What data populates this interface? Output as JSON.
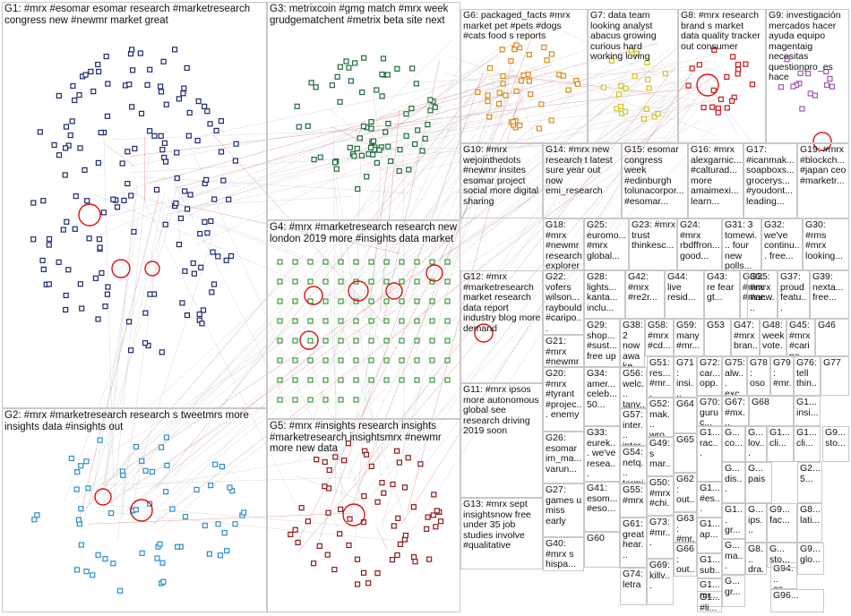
{
  "graph": {
    "groups": [
      {
        "id": "G1",
        "label": "G1: #mrx #esomar esomar research #marketresearch congress new #newmr market great",
        "color": "#1e2a6e"
      },
      {
        "id": "G2",
        "label": "G2: #mrx #marketresearch research s tweetmrs more insights data #insights out",
        "color": "#2b8fc7"
      },
      {
        "id": "G3",
        "label": "G3: metrixcoin #gmg match #mrx week grudgematchent #metrix beta site next",
        "color": "#1f6b3a"
      },
      {
        "id": "G4",
        "label": "G4: #mrx #marketresearch research new london 2019 more #insights data market",
        "color": "#3a9a3a"
      },
      {
        "id": "G5",
        "label": "G5: #mrx #insights research insights #marketresearch insightsmrx #newmr more new data",
        "color": "#8b1a1a"
      },
      {
        "id": "G6",
        "label": "G6: packaged_facts #mrx market pet #pets #dogs #cats food s reports",
        "color": "#d98a1a"
      },
      {
        "id": "G7",
        "label": "G7: data team looking analyst abacus growing curious hard working loving",
        "color": "#d4c21a"
      },
      {
        "id": "G8",
        "label": "G8: #mrx research brand s market data quality tracker out consumer",
        "color": "#c51b1b"
      },
      {
        "id": "G9",
        "label": "G9: investigación mercados hacer ayuda equipo magentaig necesitas questionpro_es hace",
        "color": "#9b59b6"
      },
      {
        "id": "G10",
        "label": "G10: #mrx wejointhedots #newmr insites esomar project social more digital sharing",
        "color": "#555555"
      },
      {
        "id": "G11",
        "label": "G11: #mrx ipsos more autonomous global see research driving 2019 soon",
        "color": "#555555"
      },
      {
        "id": "G12",
        "label": "G12: #mrx #marketresearch market research data report industry blog more demand",
        "color": "#555555"
      },
      {
        "id": "G13",
        "label": "G13: #mrx sept insightsnow free under 35 job studies involve #qualitative",
        "color": "#555555"
      },
      {
        "id": "G14",
        "label": "G14: #mrx new research t latest sure year out now emi_research",
        "color": "#555555"
      },
      {
        "id": "G15",
        "label": "G15: esomar congress week #edinburgh tolunacorpor... #esomar...",
        "color": "#555555"
      },
      {
        "id": "G16",
        "label": "G16: #mrx alexgarnic... #calturad... more amaimexi... learn...",
        "color": "#555555"
      },
      {
        "id": "G17",
        "label": "G17: #icanmak... soapboxs... grocerys... #youdont... leading...",
        "color": "#555555"
      },
      {
        "id": "G18",
        "label": "G18: #mrx #newmr research explorer up list",
        "color": "#555555"
      },
      {
        "id": "G19",
        "label": "G19: #mrx #blockch... #japan ceo #marketr...",
        "color": "#555555"
      },
      {
        "id": "G20",
        "label": "G20: #mrx #tyrant #projec... enemy",
        "color": "#555555"
      },
      {
        "id": "G21",
        "label": "G21: #mrx #newmr q_insig... #inrese...",
        "color": "#555555"
      },
      {
        "id": "G22",
        "label": "G22: vofers wilson... raybould #caripo...",
        "color": "#555555"
      },
      {
        "id": "G23",
        "label": "G23: #mrx trust thinkesc...",
        "color": "#555555"
      },
      {
        "id": "G24",
        "label": "G24: #mrx rbdffron... good...",
        "color": "#555555"
      },
      {
        "id": "G25",
        "label": "G25: euromo... #mrx global...",
        "color": "#555555"
      },
      {
        "id": "G26",
        "label": "G26: esomar im_ma... varun...",
        "color": "#555555"
      },
      {
        "id": "G27",
        "label": "G27: games u miss early",
        "color": "#555555"
      },
      {
        "id": "G28",
        "label": "G28: lights... kanta... inclu...",
        "color": "#555555"
      },
      {
        "id": "G29",
        "label": "G29: shop... #sust... free up",
        "color": "#555555"
      },
      {
        "id": "G30",
        "label": "G30: #rms #mrx looking...",
        "color": "#555555"
      },
      {
        "id": "G31",
        "label": "G31: 3 tomewi... four new polls...",
        "color": "#555555"
      },
      {
        "id": "G32",
        "label": "G32: we've continu... free...",
        "color": "#555555"
      },
      {
        "id": "G33",
        "label": "G33: eurek... we've resea...",
        "color": "#555555"
      },
      {
        "id": "G34",
        "label": "G34: amer... celeb... 50...",
        "color": "#555555"
      },
      {
        "id": "G35",
        "label": "G35: #mrx #new...",
        "color": "#555555"
      },
      {
        "id": "G36",
        "label": "G36: #mrx #mar...",
        "color": "#555555"
      },
      {
        "id": "G37",
        "label": "G37: proud featu...",
        "color": "#555555"
      },
      {
        "id": "G38",
        "label": "G38: 2 now awake 4...",
        "color": "#555555"
      },
      {
        "id": "G39",
        "label": "G39: nexta... free...",
        "color": "#555555"
      },
      {
        "id": "G40",
        "label": "G40: #mrx s hispa...",
        "color": "#555555"
      },
      {
        "id": "G41",
        "label": "G41: esom... #eso...",
        "color": "#555555"
      },
      {
        "id": "G42",
        "label": "G42: #mrx #re2r...",
        "color": "#555555"
      },
      {
        "id": "G43",
        "label": "G43: re fear gt...",
        "color": "#555555"
      },
      {
        "id": "G44",
        "label": "G44: live resid...",
        "color": "#555555"
      },
      {
        "id": "G45",
        "label": "G45: #mrx #caripo...",
        "color": "#555555"
      },
      {
        "id": "G46",
        "label": "G46",
        "color": "#555555"
      },
      {
        "id": "G47",
        "label": "G47: #mrx bran...",
        "color": "#555555"
      },
      {
        "id": "G48",
        "label": "G48: week vote...",
        "color": "#555555"
      },
      {
        "id": "G49",
        "label": "G49: s mar...",
        "color": "#555555"
      },
      {
        "id": "G50",
        "label": "G50: #mrx #chi...",
        "color": "#555555"
      },
      {
        "id": "G51",
        "label": "G51: res... #mr...",
        "color": "#555555"
      },
      {
        "id": "G52",
        "label": "G52: mak... wro...",
        "color": "#555555"
      },
      {
        "id": "G53",
        "label": "G53",
        "color": "#555555"
      },
      {
        "id": "G54",
        "label": "G54: netq... termi...",
        "color": "#555555"
      },
      {
        "id": "G55",
        "label": "G55: #mrx",
        "color": "#555555"
      },
      {
        "id": "G56",
        "label": "G56: welc... tany...",
        "color": "#555555"
      },
      {
        "id": "G57",
        "label": "G57: inter... inter...",
        "color": "#555555"
      },
      {
        "id": "G58",
        "label": "G58: #mrx #cd...",
        "color": "#555555"
      },
      {
        "id": "G59",
        "label": "G59: many #mr...",
        "color": "#555555"
      },
      {
        "id": "G60",
        "label": "G60",
        "color": "#555555"
      },
      {
        "id": "G61",
        "label": "G61: great hear...",
        "color": "#555555"
      },
      {
        "id": "G62",
        "label": "G62: out...",
        "color": "#555555"
      },
      {
        "id": "G63",
        "label": "G63: #mr...",
        "color": "#555555"
      },
      {
        "id": "G64",
        "label": "G64",
        "color": "#555555"
      },
      {
        "id": "G65",
        "label": "G65",
        "color": "#555555"
      },
      {
        "id": "G66",
        "label": "G66: out...",
        "color": "#555555"
      },
      {
        "id": "G67",
        "label": "G67: #mx...",
        "color": "#555555"
      },
      {
        "id": "G68",
        "label": "G68",
        "color": "#555555"
      },
      {
        "id": "G69",
        "label": "G69: killv...",
        "color": "#555555"
      },
      {
        "id": "G70",
        "label": "G70: guruc...",
        "color": "#555555"
      },
      {
        "id": "G71",
        "label": "G71: insi... inte...",
        "color": "#555555"
      },
      {
        "id": "G72",
        "label": "G72: car... opp...",
        "color": "#555555"
      },
      {
        "id": "G73",
        "label": "G73: #mr...",
        "color": "#555555"
      },
      {
        "id": "G74",
        "label": "G74: letra",
        "color": "#555555"
      },
      {
        "id": "G75",
        "label": "G75: alw... exc...",
        "color": "#555555"
      },
      {
        "id": "G76",
        "label": "G76: tell thin...",
        "color": "#555555"
      },
      {
        "id": "G77",
        "label": "G77",
        "color": "#555555"
      },
      {
        "id": "G78",
        "label": "G78: oso",
        "color": "#555555"
      },
      {
        "id": "G79",
        "label": "G79: #mr... poll",
        "color": "#555555"
      },
      {
        "id": "G1a",
        "label": "G1... insi...",
        "color": "#555555"
      },
      {
        "id": "G1b",
        "label": "G1... sub...",
        "color": "#555555"
      },
      {
        "id": "G1c",
        "label": "G1... rac...",
        "color": "#555555"
      },
      {
        "id": "G1d",
        "label": "G1... #es...",
        "color": "#555555"
      },
      {
        "id": "G1e",
        "label": "G1... gr...",
        "color": "#555555"
      },
      {
        "id": "G1f",
        "label": "G1... ap...",
        "color": "#555555"
      },
      {
        "id": "G1g",
        "label": "G1... mr...",
        "color": "#555555"
      },
      {
        "id": "G1h",
        "label": "G1... #li...",
        "color": "#555555"
      },
      {
        "id": "Ga1",
        "label": "G... co...",
        "color": "#555555"
      },
      {
        "id": "Ga2",
        "label": "G... lov...",
        "color": "#555555"
      },
      {
        "id": "Ga3",
        "label": "G1... cli...",
        "color": "#555555"
      },
      {
        "id": "Ga4",
        "label": "G1... cli...",
        "color": "#555555"
      },
      {
        "id": "Ga5",
        "label": "G2... 5...",
        "color": "#555555"
      },
      {
        "id": "Ga6",
        "label": "G... dis...",
        "color": "#555555"
      },
      {
        "id": "Ga7",
        "label": "G... pais",
        "color": "#555555"
      },
      {
        "id": "Ga8",
        "label": "G... ips...",
        "color": "#555555"
      },
      {
        "id": "Ga9",
        "label": "G8... lati...",
        "color": "#555555"
      },
      {
        "id": "Ga10",
        "label": "G... sto...",
        "color": "#555555"
      },
      {
        "id": "Ga11",
        "label": "G9... fac...",
        "color": "#555555"
      },
      {
        "id": "Ga12",
        "label": "G8... dra...",
        "color": "#555555"
      },
      {
        "id": "Ga13",
        "label": "G9... glo...",
        "color": "#555555"
      },
      {
        "id": "Ga14",
        "label": "G94... ce...",
        "color": "#555555"
      },
      {
        "id": "Ga15",
        "label": "G96...",
        "color": "#555555"
      },
      {
        "id": "Ga16",
        "label": "G... ma...",
        "color": "#555555"
      },
      {
        "id": "Ga17",
        "label": "G... gr...",
        "color": "#555555"
      },
      {
        "id": "Ga18",
        "label": "G9... sto...",
        "color": "#555555"
      }
    ]
  }
}
